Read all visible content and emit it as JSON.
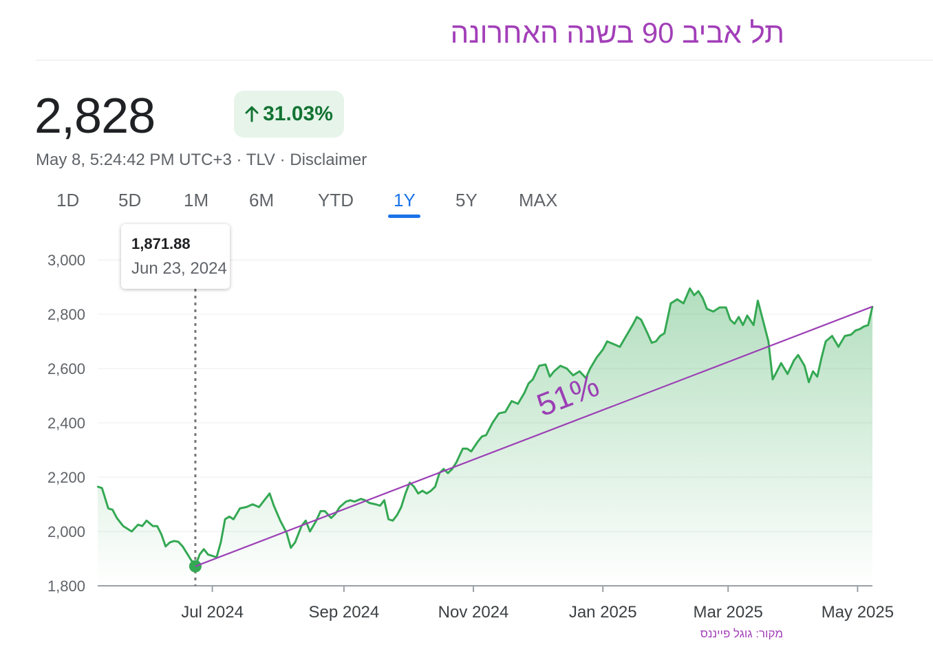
{
  "headline": "תל אביב 90 בשנה האחרונה",
  "quote": {
    "price": "2,828",
    "change": "31.03%",
    "change_arrow": "arrow-up-icon",
    "timestamp": "May 8, 5:24:42 PM UTC+3",
    "exchange": "TLV",
    "disclaimer": "Disclaimer",
    "separator": " · "
  },
  "tabs": [
    {
      "label": "1D",
      "active": false
    },
    {
      "label": "5D",
      "active": false
    },
    {
      "label": "1M",
      "active": false
    },
    {
      "label": "6M",
      "active": false
    },
    {
      "label": "YTD",
      "active": false
    },
    {
      "label": "1Y",
      "active": true
    },
    {
      "label": "5Y",
      "active": false
    },
    {
      "label": "MAX",
      "active": false
    }
  ],
  "tooltip": {
    "value": "1,871.88",
    "date": "Jun 23, 2024"
  },
  "source_note": "מקור: גוגל פייננס",
  "colors": {
    "line": "#34a853",
    "headline": "#a23fb8",
    "trend": "#9b3fb5",
    "positive": "#137333",
    "badge_bg": "#e6f4ea"
  },
  "chart_data": {
    "type": "area",
    "title": "",
    "xlabel": "",
    "ylabel": "",
    "ylim": [
      1800,
      3000
    ],
    "xlim": [
      "2024-05-08",
      "2025-05-08"
    ],
    "y_ticks": [
      {
        "value": 3000,
        "label": "3,000"
      },
      {
        "value": 2800,
        "label": "2,800"
      },
      {
        "value": 2600,
        "label": "2,600"
      },
      {
        "value": 2400,
        "label": "2,400"
      },
      {
        "value": 2200,
        "label": "2,200"
      },
      {
        "value": 2000,
        "label": "2,000"
      },
      {
        "value": 1800,
        "label": "1,800"
      }
    ],
    "x_ticks": [
      {
        "date": "2024-07-01",
        "label": "Jul 2024"
      },
      {
        "date": "2024-09-01",
        "label": "Sep 2024"
      },
      {
        "date": "2024-11-01",
        "label": "Nov 2024"
      },
      {
        "date": "2025-01-01",
        "label": "Jan 2025"
      },
      {
        "date": "2025-03-01",
        "label": "Mar 2025"
      },
      {
        "date": "2025-05-01",
        "label": "May 2025"
      }
    ],
    "grid": true,
    "highlight": {
      "date": "2024-06-23",
      "value": 1871.88
    },
    "annotations": [
      {
        "type": "trend-line",
        "from": {
          "date": "2024-06-23",
          "value": 1872
        },
        "to": {
          "date": "2025-05-08",
          "value": 2828
        },
        "label": "51%"
      }
    ],
    "series": [
      {
        "points": [
          [
            "2024-05-08",
            2165
          ],
          [
            "2024-05-10",
            2160
          ],
          [
            "2024-05-13",
            2085
          ],
          [
            "2024-05-15",
            2080
          ],
          [
            "2024-05-17",
            2050
          ],
          [
            "2024-05-20",
            2020
          ],
          [
            "2024-05-22",
            2010
          ],
          [
            "2024-05-24",
            2000
          ],
          [
            "2024-05-27",
            2025
          ],
          [
            "2024-05-29",
            2020
          ],
          [
            "2024-05-31",
            2040
          ],
          [
            "2024-06-03",
            2020
          ],
          [
            "2024-06-05",
            2020
          ],
          [
            "2024-06-07",
            1990
          ],
          [
            "2024-06-09",
            1945
          ],
          [
            "2024-06-11",
            1960
          ],
          [
            "2024-06-13",
            1965
          ],
          [
            "2024-06-15",
            1962
          ],
          [
            "2024-06-17",
            1945
          ],
          [
            "2024-06-19",
            1920
          ],
          [
            "2024-06-21",
            1895
          ],
          [
            "2024-06-23",
            1872
          ],
          [
            "2024-06-25",
            1915
          ],
          [
            "2024-06-27",
            1935
          ],
          [
            "2024-06-29",
            1915
          ],
          [
            "2024-07-01",
            1910
          ],
          [
            "2024-07-03",
            1905
          ],
          [
            "2024-07-05",
            1960
          ],
          [
            "2024-07-07",
            2045
          ],
          [
            "2024-07-09",
            2055
          ],
          [
            "2024-07-11",
            2045
          ],
          [
            "2024-07-14",
            2085
          ],
          [
            "2024-07-17",
            2090
          ],
          [
            "2024-07-20",
            2100
          ],
          [
            "2024-07-23",
            2090
          ],
          [
            "2024-07-26",
            2120
          ],
          [
            "2024-07-28",
            2140
          ],
          [
            "2024-07-30",
            2095
          ],
          [
            "2024-08-02",
            2040
          ],
          [
            "2024-08-05",
            1995
          ],
          [
            "2024-08-07",
            1940
          ],
          [
            "2024-08-09",
            1960
          ],
          [
            "2024-08-12",
            2020
          ],
          [
            "2024-08-14",
            2040
          ],
          [
            "2024-08-16",
            2000
          ],
          [
            "2024-08-19",
            2040
          ],
          [
            "2024-08-21",
            2075
          ],
          [
            "2024-08-23",
            2075
          ],
          [
            "2024-08-26",
            2050
          ],
          [
            "2024-08-28",
            2065
          ],
          [
            "2024-08-30",
            2090
          ],
          [
            "2024-09-02",
            2110
          ],
          [
            "2024-09-04",
            2115
          ],
          [
            "2024-09-06",
            2110
          ],
          [
            "2024-09-09",
            2120
          ],
          [
            "2024-09-11",
            2115
          ],
          [
            "2024-09-13",
            2105
          ],
          [
            "2024-09-16",
            2100
          ],
          [
            "2024-09-18",
            2095
          ],
          [
            "2024-09-20",
            2115
          ],
          [
            "2024-09-22",
            2045
          ],
          [
            "2024-09-24",
            2040
          ],
          [
            "2024-09-26",
            2060
          ],
          [
            "2024-09-28",
            2090
          ],
          [
            "2024-09-30",
            2140
          ],
          [
            "2024-10-02",
            2180
          ],
          [
            "2024-10-04",
            2165
          ],
          [
            "2024-10-06",
            2140
          ],
          [
            "2024-10-08",
            2150
          ],
          [
            "2024-10-10",
            2140
          ],
          [
            "2024-10-12",
            2150
          ],
          [
            "2024-10-14",
            2165
          ],
          [
            "2024-10-16",
            2215
          ],
          [
            "2024-10-18",
            2230
          ],
          [
            "2024-10-20",
            2215
          ],
          [
            "2024-10-22",
            2230
          ],
          [
            "2024-10-24",
            2255
          ],
          [
            "2024-10-27",
            2305
          ],
          [
            "2024-10-29",
            2305
          ],
          [
            "2024-10-31",
            2295
          ],
          [
            "2024-11-03",
            2330
          ],
          [
            "2024-11-05",
            2350
          ],
          [
            "2024-11-07",
            2355
          ],
          [
            "2024-11-10",
            2400
          ],
          [
            "2024-11-13",
            2435
          ],
          [
            "2024-11-16",
            2440
          ],
          [
            "2024-11-19",
            2480
          ],
          [
            "2024-11-22",
            2470
          ],
          [
            "2024-11-25",
            2510
          ],
          [
            "2024-11-27",
            2545
          ],
          [
            "2024-11-29",
            2560
          ],
          [
            "2024-12-02",
            2610
          ],
          [
            "2024-12-05",
            2615
          ],
          [
            "2024-12-07",
            2570
          ],
          [
            "2024-12-09",
            2590
          ],
          [
            "2024-12-12",
            2610
          ],
          [
            "2024-12-15",
            2600
          ],
          [
            "2024-12-18",
            2575
          ],
          [
            "2024-12-21",
            2590
          ],
          [
            "2024-12-24",
            2565
          ],
          [
            "2024-12-26",
            2600
          ],
          [
            "2024-12-29",
            2640
          ],
          [
            "2025-01-01",
            2670
          ],
          [
            "2025-01-03",
            2700
          ],
          [
            "2025-01-06",
            2690
          ],
          [
            "2025-01-09",
            2680
          ],
          [
            "2025-01-12",
            2720
          ],
          [
            "2025-01-15",
            2760
          ],
          [
            "2025-01-17",
            2790
          ],
          [
            "2025-01-19",
            2780
          ],
          [
            "2025-01-22",
            2730
          ],
          [
            "2025-01-24",
            2695
          ],
          [
            "2025-01-26",
            2700
          ],
          [
            "2025-01-28",
            2720
          ],
          [
            "2025-01-30",
            2730
          ],
          [
            "2025-02-02",
            2840
          ],
          [
            "2025-02-05",
            2855
          ],
          [
            "2025-02-08",
            2840
          ],
          [
            "2025-02-11",
            2895
          ],
          [
            "2025-02-13",
            2870
          ],
          [
            "2025-02-15",
            2885
          ],
          [
            "2025-02-17",
            2860
          ],
          [
            "2025-02-19",
            2820
          ],
          [
            "2025-02-22",
            2810
          ],
          [
            "2025-02-25",
            2825
          ],
          [
            "2025-02-28",
            2825
          ],
          [
            "2025-03-02",
            2780
          ],
          [
            "2025-03-04",
            2765
          ],
          [
            "2025-03-06",
            2790
          ],
          [
            "2025-03-08",
            2760
          ],
          [
            "2025-03-10",
            2795
          ],
          [
            "2025-03-13",
            2760
          ],
          [
            "2025-03-15",
            2850
          ],
          [
            "2025-03-17",
            2790
          ],
          [
            "2025-03-20",
            2700
          ],
          [
            "2025-03-22",
            2560
          ],
          [
            "2025-03-24",
            2590
          ],
          [
            "2025-03-26",
            2620
          ],
          [
            "2025-03-29",
            2580
          ],
          [
            "2025-04-01",
            2630
          ],
          [
            "2025-04-03",
            2650
          ],
          [
            "2025-04-06",
            2610
          ],
          [
            "2025-04-08",
            2550
          ],
          [
            "2025-04-10",
            2590
          ],
          [
            "2025-04-12",
            2570
          ],
          [
            "2025-04-14",
            2640
          ],
          [
            "2025-04-16",
            2700
          ],
          [
            "2025-04-19",
            2720
          ],
          [
            "2025-04-22",
            2680
          ],
          [
            "2025-04-25",
            2720
          ],
          [
            "2025-04-28",
            2725
          ],
          [
            "2025-04-30",
            2740
          ],
          [
            "2025-05-02",
            2745
          ],
          [
            "2025-05-04",
            2755
          ],
          [
            "2025-05-06",
            2760
          ],
          [
            "2025-05-08",
            2828
          ]
        ]
      }
    ]
  }
}
